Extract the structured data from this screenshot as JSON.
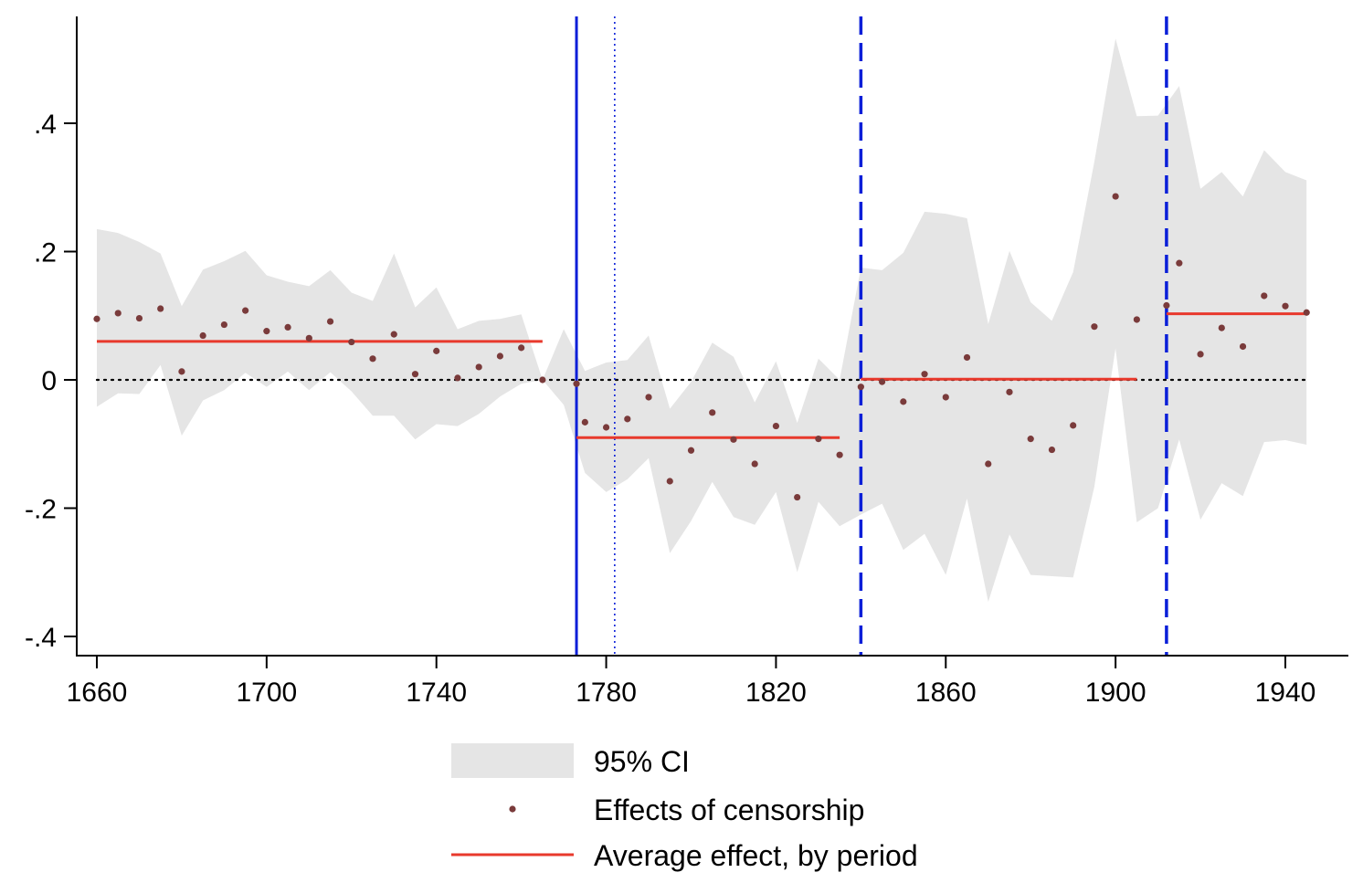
{
  "chart_data": {
    "type": "scatter",
    "title": "",
    "xlabel": "",
    "ylabel": "",
    "xlim": [
      1655,
      1952
    ],
    "ylim": [
      -0.43,
      0.56
    ],
    "x_ticks": [
      1660,
      1700,
      1740,
      1780,
      1820,
      1860,
      1900,
      1940
    ],
    "x_tick_labels": [
      "1660",
      "1700",
      "1740",
      "1780",
      "1820",
      "1860",
      "1900",
      "1940"
    ],
    "y_ticks": [
      -0.4,
      -0.2,
      0,
      0.2,
      0.4
    ],
    "y_tick_labels": [
      "-.4",
      "-.2",
      "0",
      ".2",
      ".4"
    ],
    "grid": false,
    "legend_position": "bottom",
    "colors": {
      "ci_fill": "#e5e5e5",
      "points": "#7a3b3b",
      "average_line": "#e8392c",
      "vertical_lines": "#0a1fd8",
      "zero_line": "#000000"
    },
    "zero_line": {
      "y": 0,
      "style": "dotted"
    },
    "vertical_lines": [
      {
        "x": 1773,
        "style": "solid"
      },
      {
        "x": 1782,
        "style": "dotted"
      },
      {
        "x": 1840,
        "style": "dashed"
      },
      {
        "x": 1912,
        "style": "dashed"
      }
    ],
    "series": [
      {
        "name": "95% CI",
        "kind": "band",
        "x": [
          1660,
          1665,
          1670,
          1675,
          1680,
          1685,
          1690,
          1695,
          1700,
          1705,
          1710,
          1715,
          1720,
          1725,
          1730,
          1735,
          1740,
          1745,
          1750,
          1755,
          1760,
          1765,
          1770,
          1775,
          1780,
          1785,
          1790,
          1795,
          1800,
          1805,
          1810,
          1815,
          1820,
          1825,
          1830,
          1835,
          1840,
          1845,
          1850,
          1855,
          1860,
          1865,
          1870,
          1875,
          1880,
          1885,
          1890,
          1895,
          1900,
          1905,
          1910,
          1915,
          1920,
          1925,
          1930,
          1935,
          1940,
          1945
        ],
        "upper": [
          0.235,
          0.229,
          0.215,
          0.197,
          0.115,
          0.172,
          0.185,
          0.201,
          0.163,
          0.153,
          0.146,
          0.171,
          0.136,
          0.123,
          0.197,
          0.113,
          0.144,
          0.079,
          0.092,
          0.095,
          0.102,
          0.0,
          0.079,
          0.014,
          0.027,
          0.031,
          0.069,
          -0.045,
          -0.003,
          0.058,
          0.036,
          -0.035,
          0.029,
          -0.067,
          0.033,
          0.0,
          0.175,
          0.171,
          0.198,
          0.262,
          0.259,
          0.252,
          0.087,
          0.201,
          0.121,
          0.092,
          0.168,
          0.34,
          0.532,
          0.411,
          0.412,
          0.458,
          0.298,
          0.324,
          0.286,
          0.358,
          0.324,
          0.311
        ],
        "lower": [
          -0.042,
          -0.021,
          -0.022,
          0.023,
          -0.087,
          -0.032,
          -0.016,
          0.011,
          -0.011,
          0.013,
          -0.016,
          0.012,
          -0.018,
          -0.056,
          -0.056,
          -0.093,
          -0.069,
          -0.072,
          -0.053,
          -0.026,
          -0.006,
          0.0,
          -0.039,
          -0.145,
          -0.175,
          -0.155,
          -0.122,
          -0.27,
          -0.22,
          -0.159,
          -0.214,
          -0.226,
          -0.175,
          -0.3,
          -0.19,
          -0.228,
          -0.21,
          -0.193,
          -0.265,
          -0.24,
          -0.304,
          -0.185,
          -0.346,
          -0.241,
          -0.304,
          -0.306,
          -0.308,
          -0.167,
          0.049,
          -0.222,
          -0.2,
          -0.093,
          -0.218,
          -0.161,
          -0.181,
          -0.097,
          -0.094,
          -0.101
        ]
      },
      {
        "name": "Effects of censorship",
        "kind": "points",
        "x": [
          1660,
          1665,
          1670,
          1675,
          1680,
          1685,
          1690,
          1695,
          1700,
          1705,
          1710,
          1715,
          1720,
          1725,
          1730,
          1735,
          1740,
          1745,
          1750,
          1755,
          1760,
          1765,
          1773,
          1775,
          1780,
          1785,
          1790,
          1795,
          1800,
          1805,
          1810,
          1815,
          1820,
          1825,
          1830,
          1835,
          1840,
          1845,
          1850,
          1855,
          1860,
          1865,
          1870,
          1875,
          1880,
          1885,
          1890,
          1895,
          1900,
          1905,
          1912,
          1915,
          1920,
          1925,
          1930,
          1935,
          1940,
          1945
        ],
        "y": [
          0.095,
          0.104,
          0.096,
          0.111,
          0.013,
          0.069,
          0.086,
          0.108,
          0.076,
          0.082,
          0.065,
          0.091,
          0.059,
          0.033,
          0.071,
          0.009,
          0.045,
          0.003,
          0.02,
          0.037,
          0.05,
          0.0,
          -0.006,
          -0.066,
          -0.074,
          -0.061,
          -0.027,
          -0.158,
          -0.11,
          -0.051,
          -0.093,
          -0.131,
          -0.072,
          -0.183,
          -0.092,
          -0.117,
          -0.011,
          -0.003,
          -0.034,
          0.009,
          -0.027,
          0.035,
          -0.131,
          -0.019,
          -0.092,
          -0.109,
          -0.071,
          0.083,
          0.286,
          0.094,
          0.116,
          0.182,
          0.04,
          0.081,
          0.052,
          0.131,
          0.115,
          0.105
        ]
      },
      {
        "name": "Average effect, by period",
        "kind": "segments",
        "segments": [
          {
            "x": [
              1660,
              1765
            ],
            "y": 0.06
          },
          {
            "x": 1773,
            "x_end": 1835,
            "y": -0.09
          },
          {
            "x": [
              1840,
              1905
            ],
            "y": 0.001
          },
          {
            "x": [
              1912,
              1945
            ],
            "y": 0.103
          }
        ]
      }
    ],
    "legend": [
      {
        "label": "95% CI",
        "kind": "band"
      },
      {
        "label": "Effects of censorship",
        "kind": "points"
      },
      {
        "label": "Average effect, by period",
        "kind": "line"
      }
    ]
  }
}
